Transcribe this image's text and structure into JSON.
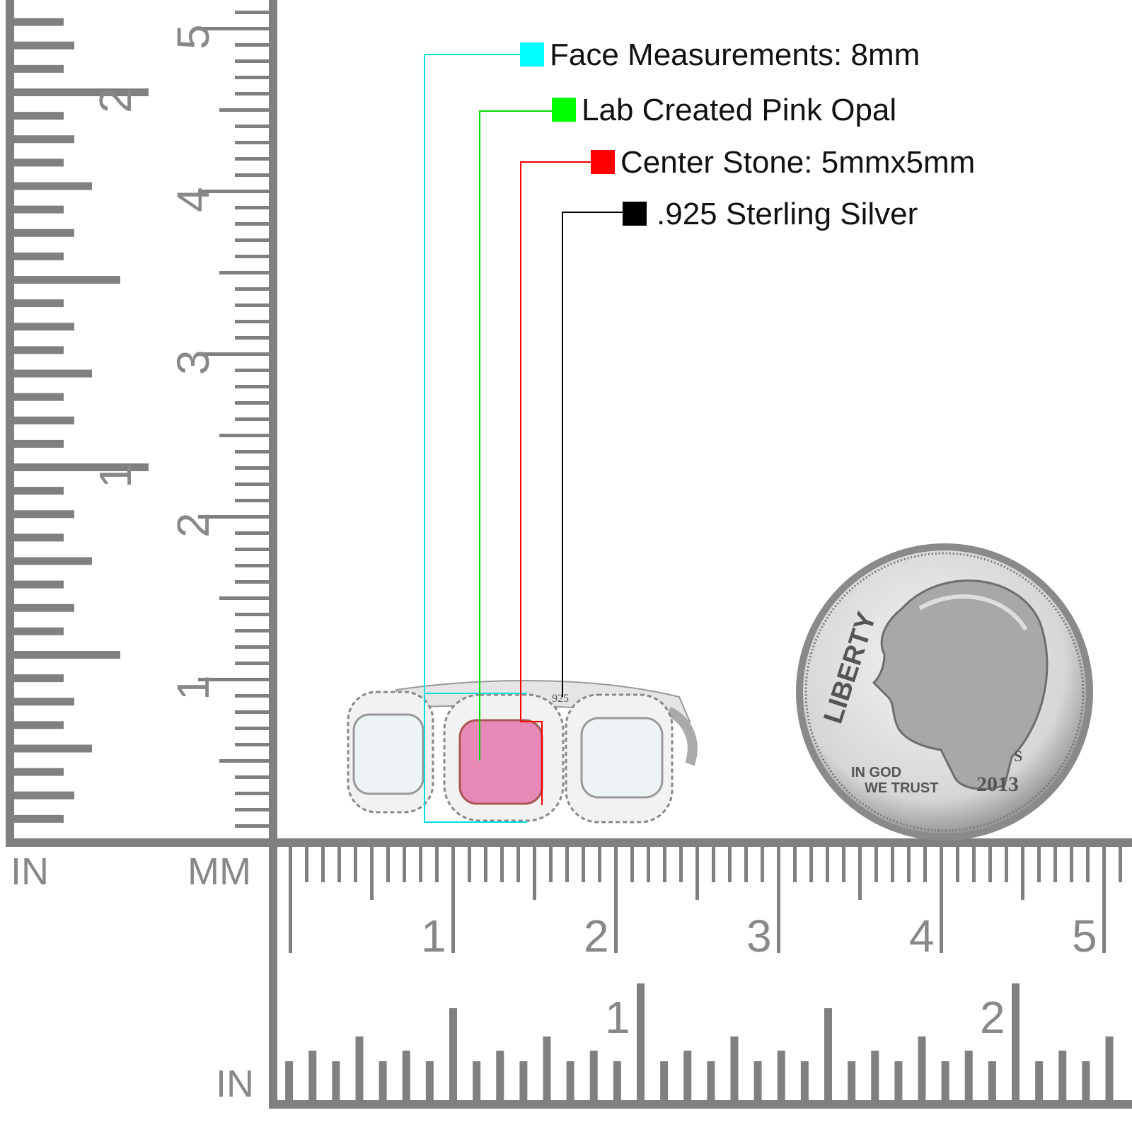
{
  "legend": [
    {
      "label": "Face Measurements: 8mm",
      "color": "#00ffff"
    },
    {
      "label": "Lab Created Pink Opal",
      "color": "#00ff00"
    },
    {
      "label": "Center Stone: 5mmx5mm",
      "color": "#ff0000"
    },
    {
      "label": ".925 Sterling Silver",
      "color": "#000000"
    }
  ],
  "rulers": {
    "left_unit": "IN",
    "mm_unit": "MM",
    "bottom_unit": "IN",
    "vertical_inch_labels": [
      "1",
      "2"
    ],
    "vertical_cm_labels": [
      "1",
      "2",
      "3",
      "4",
      "5"
    ],
    "horizontal_cm_labels": [
      "1",
      "2",
      "3",
      "4",
      "5"
    ],
    "horizontal_inch_labels": [
      "1",
      "2"
    ],
    "ruler_color": "#808080"
  },
  "coin": {
    "motto_left": "LIBERTY",
    "motto_bottom_1": "IN GOD",
    "motto_bottom_2": "WE TRUST",
    "year": "2013",
    "mint_mark": "S"
  },
  "ring": {
    "stamp": "925",
    "center_stone_color": "#e88ab8",
    "side_stone_color": "#eef4f6"
  }
}
